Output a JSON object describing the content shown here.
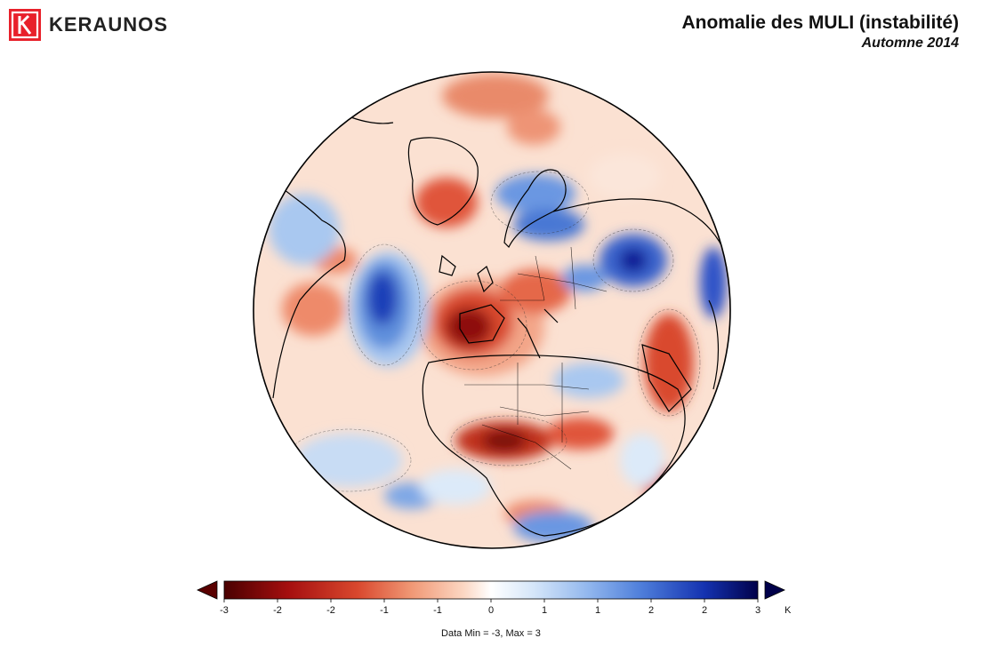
{
  "header": {
    "logo_text": "KERAUNOS",
    "title": "Anomalie des MULI (instabilité)",
    "subtitle": "Automne 2014"
  },
  "colorbar": {
    "tick_labels": [
      "-3",
      "-2",
      "-2",
      "-1",
      "-1",
      "0",
      "1",
      "1",
      "2",
      "2",
      "3"
    ],
    "unit": "K",
    "data_range": "Data Min = -3, Max = 3",
    "colors": [
      "#5a0000",
      "#a50f0f",
      "#d2402b",
      "#ee7f5c",
      "#f7b898",
      "#fde3d3",
      "#ffffff",
      "#dceaf9",
      "#a9c8f0",
      "#6b97e2",
      "#2e53c8",
      "#0b1f96",
      "#000040"
    ]
  },
  "map": {
    "projection": "orthographic",
    "palette": {
      "warm_strong": "#8e1111",
      "warm": "#d9482e",
      "warm_light": "#f3a588",
      "neutral": "#fbe6da",
      "cool_light": "#c8dcf4",
      "cool": "#5f8fdc",
      "cool_strong": "#1c3fb8"
    }
  }
}
